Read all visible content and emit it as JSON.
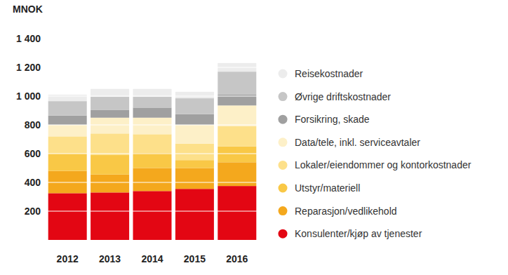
{
  "chart_data": {
    "type": "bar",
    "stacked": true,
    "grid": true,
    "legend": "right",
    "ylabel": "MNOK",
    "categories": [
      "2012",
      "2013",
      "2014",
      "2015",
      "2016"
    ],
    "ylim": [
      0,
      1400
    ],
    "yticks": [
      200,
      400,
      600,
      800,
      {
        "value": 1000,
        "label": "1 000"
      },
      {
        "value": 1200,
        "label": "1 200"
      },
      {
        "value": 1400,
        "label": "1 400"
      }
    ],
    "series": [
      {
        "name": "Konsulenter/kjøp av tjenester",
        "color": "#e30613",
        "values": [
          325,
          330,
          340,
          355,
          375
        ]
      },
      {
        "name": "Reparasjon/vedlikehold",
        "color": "#f4a81d",
        "values": [
          155,
          125,
          160,
          145,
          165
        ]
      },
      {
        "name": "Utstyr/materiell",
        "color": "#f9c846",
        "values": [
          120,
          135,
          105,
          55,
          110
        ]
      },
      {
        "name": "Lokaler/eiendommer og kontorkostnader",
        "color": "#fde08a",
        "values": [
          120,
          150,
          130,
          115,
          140
        ]
      },
      {
        "name": "Data/tele, inkl. serviceavtaler",
        "color": "#fdf0c8",
        "values": [
          80,
          110,
          115,
          130,
          145
        ]
      },
      {
        "name": "Forsikring, skade",
        "color": "#a0a0a0",
        "values": [
          65,
          55,
          70,
          75,
          75
        ]
      },
      {
        "name": "Øvrige driftskostnader",
        "color": "#c6c6c6",
        "values": [
          100,
          90,
          75,
          110,
          160
        ]
      },
      {
        "name": "Reisekostnader",
        "color": "#ececec",
        "values": [
          45,
          55,
          55,
          45,
          60
        ]
      }
    ]
  }
}
